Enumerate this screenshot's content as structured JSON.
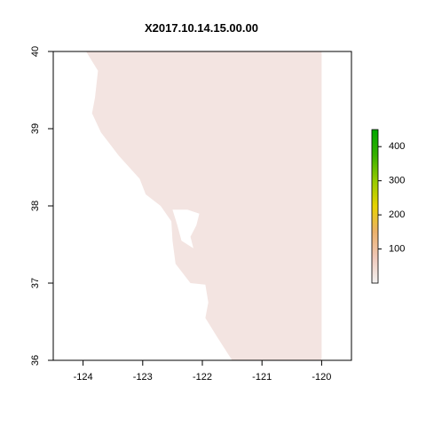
{
  "map": {
    "title": "X2017.10.14.15.00.00",
    "x_axis": {
      "min": -124.5,
      "max": -119.5,
      "ticks": [
        -124,
        -123,
        -122,
        -121,
        -120
      ]
    },
    "y_axis": {
      "min": 36,
      "max": 40,
      "ticks": [
        36,
        37,
        38,
        39,
        40
      ]
    },
    "data_extent": {
      "lon_min": -124.4,
      "lon_max": -120.0,
      "lat_min": 36.0,
      "lat_max": 40.0
    },
    "land_color": "#f3e4e1",
    "water_color": "#ffffff",
    "coastline": [
      [
        -123.95,
        40.0
      ],
      [
        -123.75,
        39.75
      ],
      [
        -123.8,
        39.4
      ],
      [
        -123.85,
        39.2
      ],
      [
        -123.7,
        38.95
      ],
      [
        -123.4,
        38.65
      ],
      [
        -123.05,
        38.35
      ],
      [
        -122.95,
        38.15
      ],
      [
        -122.7,
        38.0
      ],
      [
        -122.52,
        37.8
      ],
      [
        -122.5,
        37.55
      ],
      [
        -122.45,
        37.25
      ],
      [
        -122.2,
        37.0
      ],
      [
        -121.95,
        36.98
      ],
      [
        -121.9,
        36.75
      ],
      [
        -121.95,
        36.55
      ],
      [
        -121.75,
        36.3
      ],
      [
        -121.5,
        36.0
      ]
    ],
    "bay_water": [
      [
        -122.5,
        37.95
      ],
      [
        -122.25,
        37.95
      ],
      [
        -122.05,
        37.9
      ],
      [
        -122.1,
        37.75
      ],
      [
        -122.2,
        37.6
      ],
      [
        -122.15,
        37.45
      ],
      [
        -122.35,
        37.55
      ],
      [
        -122.42,
        37.75
      ]
    ]
  },
  "legend": {
    "ticks": [
      100,
      200,
      300,
      400
    ],
    "min": 0,
    "max": 450,
    "colors": [
      "#f2f2f2",
      "#f0c8b9",
      "#ebb06a",
      "#e7d200",
      "#96cb00",
      "#36b000",
      "#00a600"
    ]
  }
}
